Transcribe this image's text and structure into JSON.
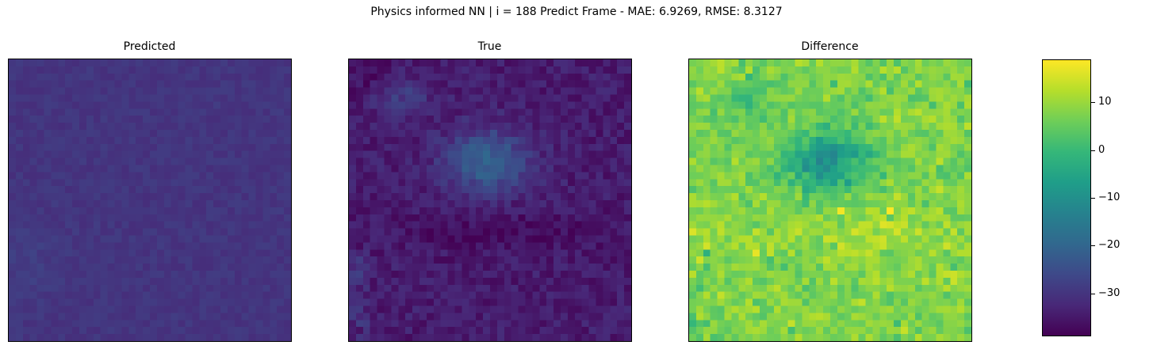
{
  "figure": {
    "suptitle": "Physics informed NN | i = 188 Predict Frame - MAE: 6.9269, RMSE: 8.3127"
  },
  "colormap": {
    "name": "viridis",
    "stops": [
      "#440154",
      "#482878",
      "#3e4989",
      "#31688e",
      "#26828e",
      "#1f9e89",
      "#35b779",
      "#6ece58",
      "#b5de2b",
      "#fde725"
    ]
  },
  "chart_data": [
    {
      "type": "heatmap",
      "title": "Predicted",
      "grid_size": [
        40,
        40
      ],
      "value_range": [
        -39,
        19
      ],
      "pattern": "nearly uniform field, values about -32 to -26",
      "xticks": [],
      "yticks": []
    },
    {
      "type": "heatmap",
      "title": "True",
      "grid_size": [
        40,
        40
      ],
      "value_range": [
        -39,
        19
      ],
      "pattern": "mostly -37 to -33 with a brighter cluster (about -25 to -15) in the upper-middle, a darker band across the lower half, some lighter cells along the left edge",
      "xticks": [],
      "yticks": []
    },
    {
      "type": "heatmap",
      "title": "Difference",
      "grid_size": [
        40,
        40
      ],
      "value_range": [
        -39,
        19
      ],
      "pattern": "mostly 0 to 15 (green-yellow) with a darker blue cluster (about -25 to -5) in the upper-middle, yellow hot spots near 18",
      "xticks": [],
      "yticks": []
    }
  ],
  "colorbar": {
    "range": [
      -39,
      19
    ],
    "ticks": [
      {
        "value": 10,
        "label": "10"
      },
      {
        "value": 0,
        "label": "0"
      },
      {
        "value": -10,
        "label": "−10"
      },
      {
        "value": -20,
        "label": "−20"
      },
      {
        "value": -30,
        "label": "−30"
      }
    ]
  }
}
